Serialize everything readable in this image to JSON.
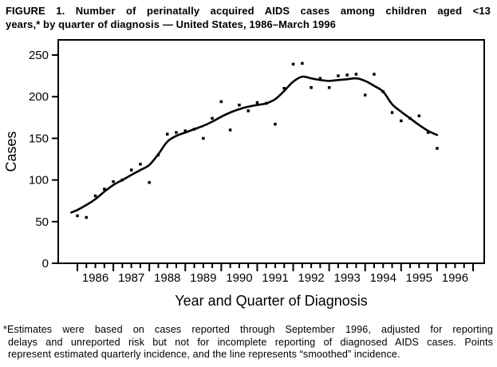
{
  "figure": {
    "title_line1": "FIGURE 1. Number of perinatally acquired AIDS cases among children aged <13",
    "title_line2": "years,* by quarter of diagnosis — United States, 1986–March 1996",
    "footnote_line1": "*Estimates were based on cases reported through September 1996, adjusted for reporting",
    "footnote_line2": "delays and unreported risk but not for incomplete reporting of diagnosed AIDS cases. Points",
    "footnote_line3": "represent estimated quarterly incidence, and the line represents “smoothed” incidence."
  },
  "chart_data": {
    "type": "scatter",
    "title": "",
    "xlabel": "Year and Quarter of Diagnosis",
    "ylabel": "Cases",
    "x_years": [
      1986,
      1987,
      1988,
      1989,
      1990,
      1991,
      1992,
      1993,
      1994,
      1995,
      1996
    ],
    "y_ticks": [
      0,
      50,
      100,
      150,
      200,
      250
    ],
    "ylim": [
      0,
      268
    ],
    "xlim": [
      1985.5,
      1997.3
    ],
    "grid": false,
    "legend_position": "none",
    "x_start": 1986.0,
    "x_step": 0.25,
    "x_range_note": "quarterly, 1986 Q1 through 1996 Q1",
    "series": [
      {
        "name": "Estimated quarterly incidence (points)",
        "style": "scatter",
        "values": [
          57,
          55,
          81,
          89,
          98,
          100,
          112,
          119,
          97,
          130,
          155,
          157,
          159,
          161,
          150,
          174,
          194,
          160,
          190,
          183,
          193,
          192,
          167,
          210,
          239,
          240,
          211,
          222,
          211,
          225,
          226,
          227,
          202,
          227,
          206,
          181,
          171,
          174,
          177,
          157,
          138
        ]
      },
      {
        "name": "Smoothed incidence (line)",
        "style": "line",
        "values": [
          64,
          70,
          77,
          86,
          94,
          100,
          106,
          112,
          118,
          131,
          146,
          153,
          157,
          161,
          165,
          170,
          176,
          181,
          185,
          188,
          190,
          192,
          197,
          207,
          218,
          224,
          222,
          220,
          219,
          220,
          221,
          222,
          219,
          213,
          206,
          191,
          182,
          174,
          166,
          159,
          154
        ]
      }
    ],
    "colors": {
      "ink": "#000000",
      "background": "#ffffff"
    }
  }
}
